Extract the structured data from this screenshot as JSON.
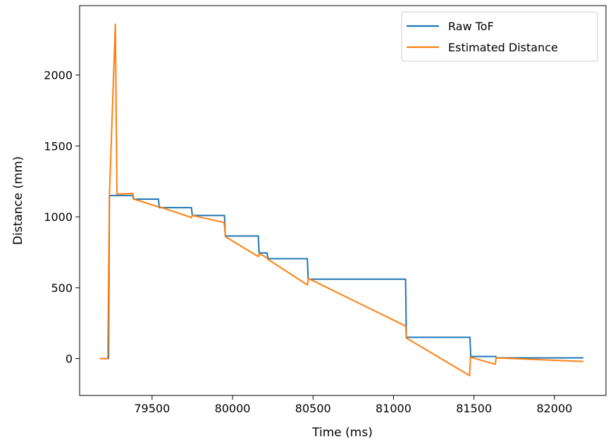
{
  "chart_data": {
    "type": "line",
    "xlabel": "Time (ms)",
    "ylabel": "Distance (mm)",
    "xlim": [
      79050,
      82320
    ],
    "ylim": [
      -260,
      2490
    ],
    "x_ticks": [
      79500,
      80000,
      80500,
      81000,
      81500,
      82000
    ],
    "y_ticks": [
      0,
      500,
      1000,
      1500,
      2000
    ],
    "grid": false,
    "legend": "upper-right",
    "series": [
      {
        "name": "Raw ToF",
        "color": "#1f77b4",
        "points": [
          [
            79175,
            0
          ],
          [
            79230,
            0
          ],
          [
            79235,
            1150
          ],
          [
            79380,
            1150
          ],
          [
            79385,
            1125
          ],
          [
            79540,
            1125
          ],
          [
            79545,
            1065
          ],
          [
            79745,
            1065
          ],
          [
            79750,
            1010
          ],
          [
            79950,
            1010
          ],
          [
            79955,
            865
          ],
          [
            80160,
            865
          ],
          [
            80165,
            745
          ],
          [
            80215,
            745
          ],
          [
            80220,
            705
          ],
          [
            80465,
            705
          ],
          [
            80470,
            560
          ],
          [
            81075,
            560
          ],
          [
            81080,
            150
          ],
          [
            81475,
            150
          ],
          [
            81480,
            15
          ],
          [
            81635,
            15
          ],
          [
            81640,
            5
          ],
          [
            82180,
            5
          ]
        ]
      },
      {
        "name": "Estimated Distance",
        "color": "#ff7f0e",
        "points": [
          [
            79175,
            0
          ],
          [
            79225,
            0
          ],
          [
            79235,
            1150
          ],
          [
            79272,
            2360
          ],
          [
            79282,
            1160
          ],
          [
            79380,
            1165
          ],
          [
            79388,
            1125
          ],
          [
            79540,
            1070
          ],
          [
            79548,
            1070
          ],
          [
            79745,
            995
          ],
          [
            79750,
            1010
          ],
          [
            79948,
            960
          ],
          [
            79956,
            860
          ],
          [
            80160,
            720
          ],
          [
            80168,
            740
          ],
          [
            80215,
            710
          ],
          [
            80220,
            700
          ],
          [
            80465,
            520
          ],
          [
            80472,
            565
          ],
          [
            81075,
            230
          ],
          [
            81080,
            145
          ],
          [
            81473,
            -120
          ],
          [
            81478,
            10
          ],
          [
            81632,
            -40
          ],
          [
            81638,
            5
          ],
          [
            82180,
            -20
          ]
        ]
      }
    ]
  }
}
